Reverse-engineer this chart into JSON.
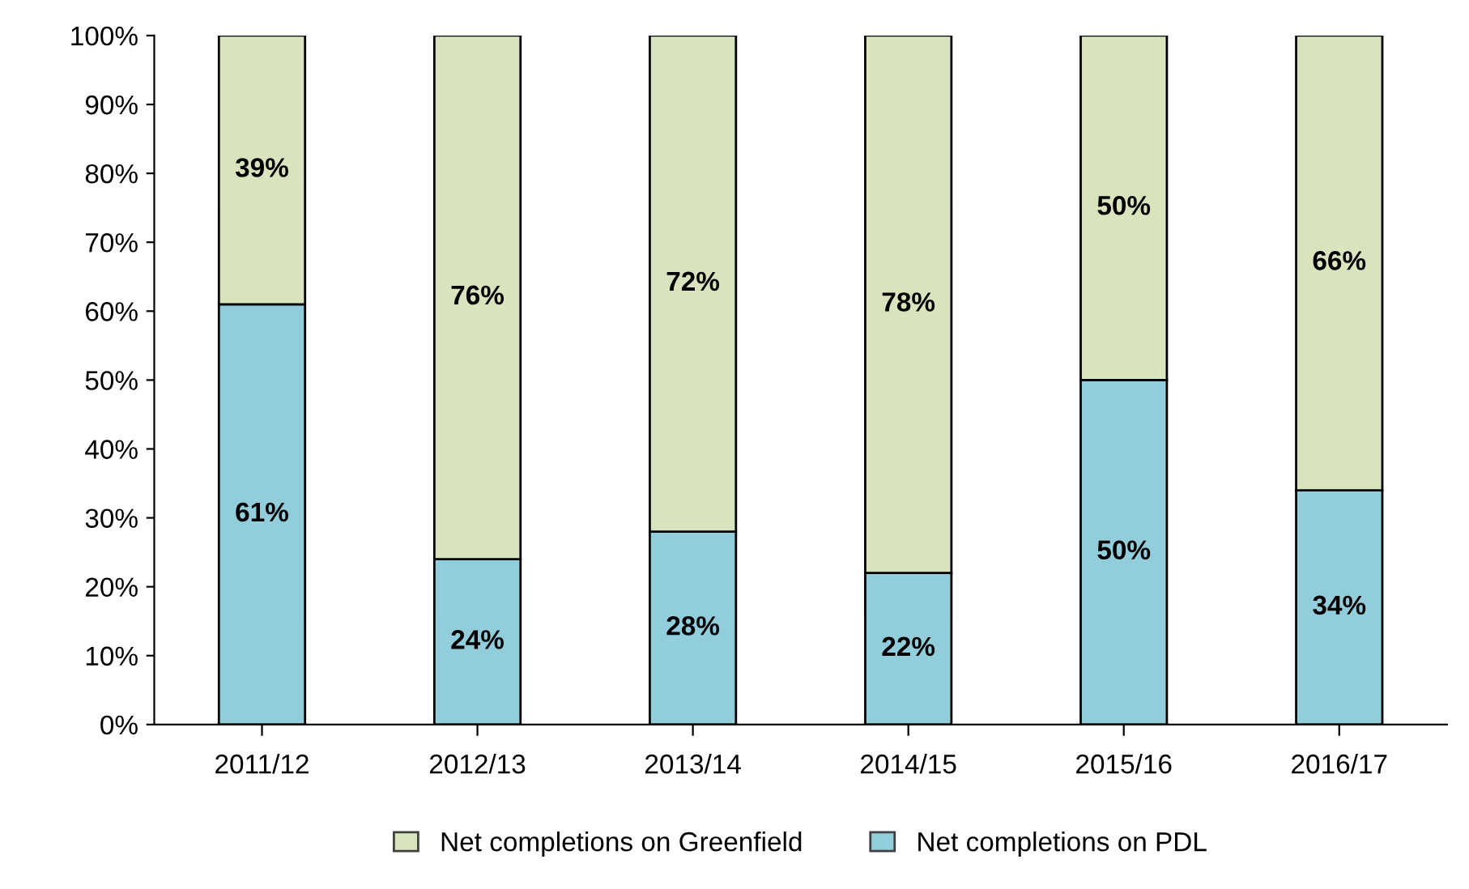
{
  "chart_data": {
    "type": "bar",
    "stacked": true,
    "categories": [
      "2011/12",
      "2012/13",
      "2013/14",
      "2014/15",
      "2015/16",
      "2016/17"
    ],
    "series": [
      {
        "name": "Net completions on PDL",
        "color": "#92cddc",
        "values": [
          61,
          24,
          28,
          22,
          50,
          34
        ],
        "value_labels": [
          "61%",
          "24%",
          "28%",
          "22%",
          "50%",
          "34%"
        ]
      },
      {
        "name": "Net completions on Greenfield",
        "color": "#d7e4bd",
        "values": [
          39,
          76,
          72,
          78,
          50,
          66
        ],
        "value_labels": [
          "39%",
          "76%",
          "72%",
          "78%",
          "50%",
          "66%"
        ]
      }
    ],
    "ylim": [
      0,
      100
    ],
    "yticks": [
      {
        "value": 0,
        "label": "0%"
      },
      {
        "value": 10,
        "label": "10%"
      },
      {
        "value": 20,
        "label": "20%"
      },
      {
        "value": 30,
        "label": "30%"
      },
      {
        "value": 40,
        "label": "40%"
      },
      {
        "value": 50,
        "label": "50%"
      },
      {
        "value": 60,
        "label": "60%"
      },
      {
        "value": 70,
        "label": "70%"
      },
      {
        "value": 80,
        "label": "80%"
      },
      {
        "value": 90,
        "label": "90%"
      },
      {
        "value": 100,
        "label": "100%"
      }
    ],
    "grid": false,
    "legend": "bottom"
  }
}
